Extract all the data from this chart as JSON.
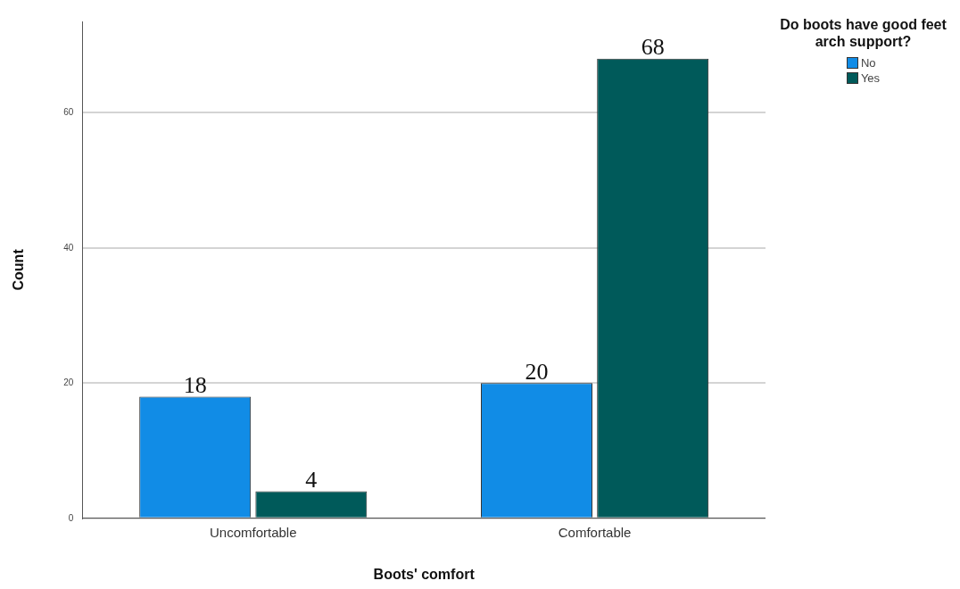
{
  "chart_data": {
    "type": "bar",
    "xlabel": "Boots' comfort",
    "ylabel": "Count",
    "legend_title": "Do boots have good feet arch support?",
    "categories": [
      "Uncomfortable",
      "Comfortable"
    ],
    "series": [
      {
        "name": "No",
        "color": "#118ce6",
        "values": [
          18,
          20
        ]
      },
      {
        "name": "Yes",
        "color": "#005a5a",
        "values": [
          4,
          68
        ]
      }
    ],
    "ylim": [
      0,
      73.5
    ],
    "yticks": [
      0,
      20,
      40,
      60
    ],
    "grid": "y",
    "legend": "top right",
    "data_labels": true
  }
}
